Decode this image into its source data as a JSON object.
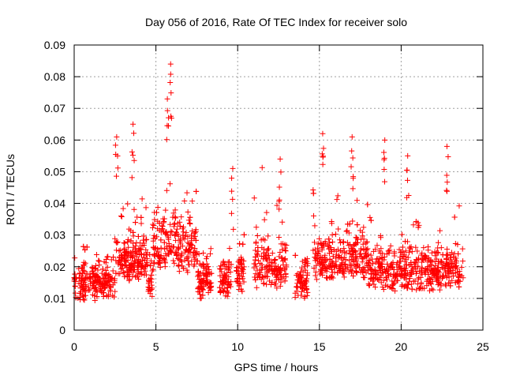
{
  "chart_data": {
    "type": "scatter",
    "title": "Day 056 of 2016, Rate Of TEC Index for receiver solo",
    "xlabel": "GPS time / hours",
    "ylabel": "ROTI / TECUs",
    "xlim": [
      0,
      25
    ],
    "ylim": [
      0,
      0.09
    ],
    "x_ticks": [
      0,
      5,
      10,
      15,
      20,
      25
    ],
    "x_tick_labels": [
      "0",
      "5",
      "10",
      "15",
      "20",
      "25"
    ],
    "y_ticks": [
      0,
      0.01,
      0.02,
      0.03,
      0.04,
      0.05,
      0.06,
      0.07,
      0.08,
      0.09
    ],
    "y_tick_labels": [
      "0",
      "0.01",
      "0.02",
      "0.03",
      "0.04",
      "0.05",
      "0.06",
      "0.07",
      "0.08",
      "0.09"
    ],
    "grid": true,
    "legend": "none",
    "marker": "plus",
    "color": "#ff0000",
    "data_gaps_hours": [
      [
        8.4,
        8.9
      ],
      [
        9.6,
        9.9
      ],
      [
        10.4,
        11.0
      ],
      [
        13.0,
        13.5
      ],
      [
        14.3,
        14.6
      ]
    ],
    "peaks": [
      {
        "x": 5.9,
        "y": 0.084
      },
      {
        "x": 5.7,
        "y": 0.073
      },
      {
        "x": 3.6,
        "y": 0.065
      },
      {
        "x": 2.6,
        "y": 0.061
      },
      {
        "x": 15.2,
        "y": 0.062
      },
      {
        "x": 17.0,
        "y": 0.061
      },
      {
        "x": 19.0,
        "y": 0.06
      },
      {
        "x": 22.8,
        "y": 0.058
      },
      {
        "x": 9.7,
        "y": 0.051
      },
      {
        "x": 12.6,
        "y": 0.054
      },
      {
        "x": 20.4,
        "y": 0.055
      }
    ]
  }
}
